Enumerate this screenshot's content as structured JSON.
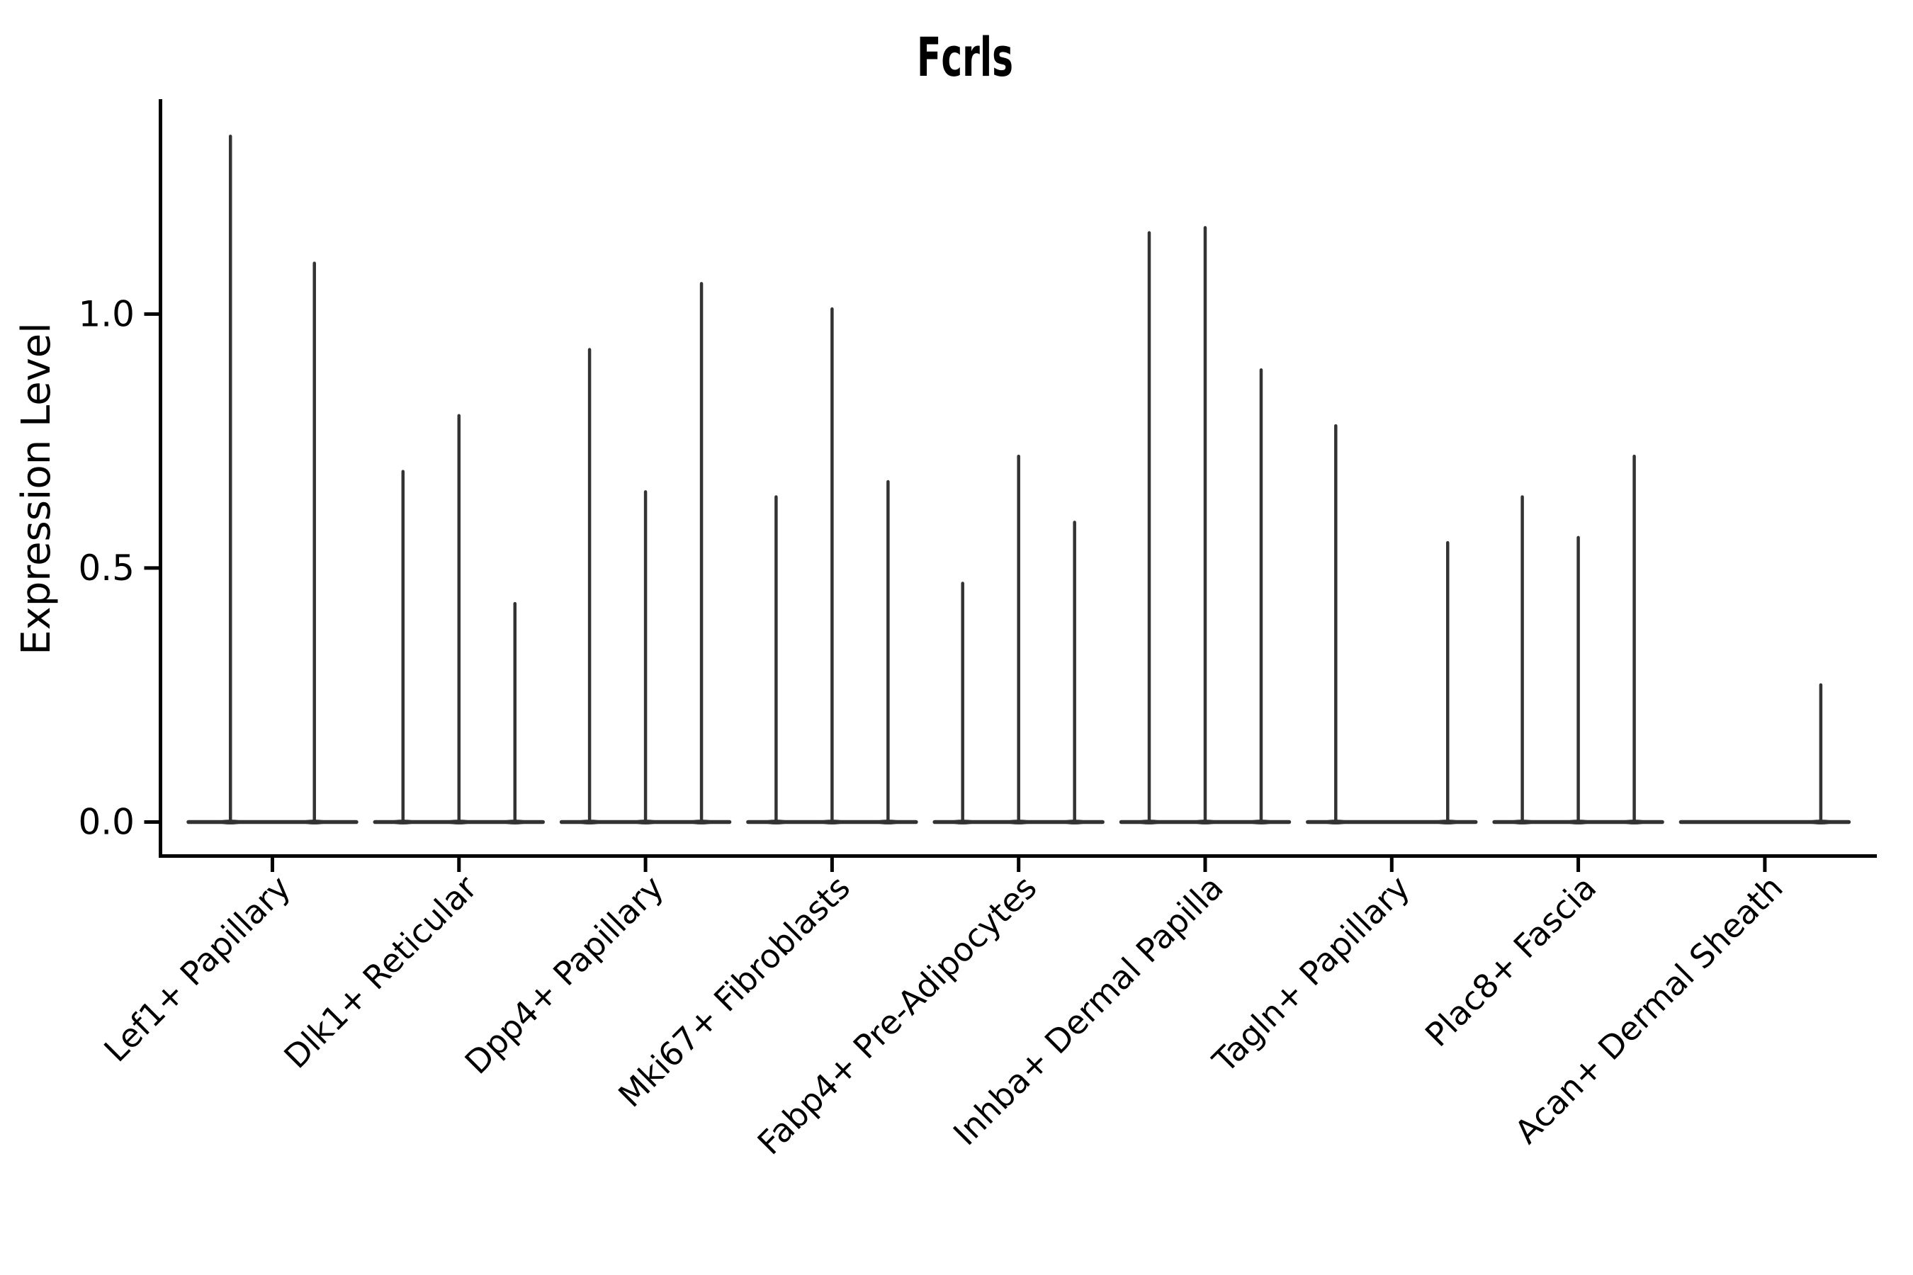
{
  "chart_data": {
    "type": "violin",
    "title": "Fcrls",
    "ylabel": "Expression Level",
    "xlabel": "",
    "yticks": [
      0.0,
      0.5,
      1.0
    ],
    "ylim": [
      -0.07,
      1.42
    ],
    "grid": false,
    "legend": false,
    "x_label_rotation_deg": 45,
    "categories": [
      "Lef1+ Papillary",
      "Dlk1+ Reticular",
      "Dpp4+ Papillary",
      "Mki67+ Fibroblasts",
      "Fabp4+ Pre-Adipocytes",
      "Inhba+ Dermal Papilla",
      "Tagln+ Papillary",
      "Plac8+ Fascia",
      "Acan+ Dermal Sheath"
    ],
    "groups": [
      {
        "category": "Lef1+ Papillary",
        "violin_maxima": [
          1.35,
          1.1
        ]
      },
      {
        "category": "Dlk1+ Reticular",
        "violin_maxima": [
          0.69,
          0.8,
          0.43
        ]
      },
      {
        "category": "Dpp4+ Papillary",
        "violin_maxima": [
          0.93,
          0.65,
          1.06
        ]
      },
      {
        "category": "Mki67+ Fibroblasts",
        "violin_maxima": [
          0.64,
          1.01,
          0.67
        ]
      },
      {
        "category": "Fabp4+ Pre-Adipocytes",
        "violin_maxima": [
          0.47,
          0.72,
          0.59
        ]
      },
      {
        "category": "Inhba+ Dermal Papilla",
        "violin_maxima": [
          1.16,
          1.17,
          0.89
        ]
      },
      {
        "category": "Tagln+ Papillary",
        "violin_maxima": [
          0.78,
          0.0,
          0.55
        ]
      },
      {
        "category": "Plac8+ Fascia",
        "violin_maxima": [
          0.64,
          0.56,
          0.72
        ]
      },
      {
        "category": "Acan+ Dermal Sheath",
        "violin_maxima": [
          0.0,
          0.0,
          0.27
        ]
      }
    ],
    "colors": {
      "violin": "#333333",
      "axis": "#000000",
      "background": "#ffffff"
    }
  }
}
